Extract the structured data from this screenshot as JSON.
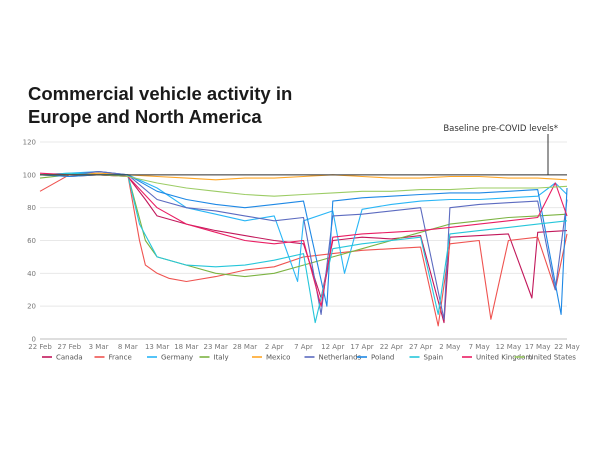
{
  "chart_data": {
    "type": "line",
    "title": "Commercial vehicle activity in Europe and North America",
    "xlabel": "",
    "ylabel": "",
    "x_start": "2020-02-22",
    "x_end": "2020-05-22",
    "x_ticks": [
      "22 Feb",
      "27 Feb",
      "3 Mar",
      "8 Mar",
      "13 Mar",
      "18 Mar",
      "23 Mar",
      "28 Mar",
      "2 Apr",
      "7 Apr",
      "12 Apr",
      "17 Apr",
      "22 Apr",
      "27 Apr",
      "2 May",
      "7 May",
      "12 May",
      "17 May",
      "22 May"
    ],
    "ylim": [
      0,
      120
    ],
    "y_ticks": [
      0,
      20,
      40,
      60,
      80,
      100,
      120
    ],
    "grid": "horizontal",
    "legend_position": "bottom",
    "baseline": {
      "value": 100,
      "label": "Baseline pre-COVID levels*"
    },
    "series": [
      {
        "name": "Canada",
        "color": "#c2185b",
        "values": [
          [
            0,
            100
          ],
          [
            5,
            99
          ],
          [
            10,
            100
          ],
          [
            15,
            99
          ],
          [
            18,
            85
          ],
          [
            20,
            75
          ],
          [
            25,
            70
          ],
          [
            30,
            66
          ],
          [
            35,
            63
          ],
          [
            40,
            60
          ],
          [
            45,
            58
          ],
          [
            48,
            25
          ],
          [
            50,
            60
          ],
          [
            55,
            62
          ],
          [
            60,
            61
          ],
          [
            65,
            63
          ],
          [
            69,
            10
          ],
          [
            70,
            62
          ],
          [
            75,
            63
          ],
          [
            80,
            64
          ],
          [
            84,
            25
          ],
          [
            85,
            65
          ],
          [
            90,
            66
          ]
        ]
      },
      {
        "name": "France",
        "color": "#ef5350",
        "values": [
          [
            0,
            90
          ],
          [
            5,
            100
          ],
          [
            10,
            102
          ],
          [
            15,
            100
          ],
          [
            17,
            60
          ],
          [
            18,
            45
          ],
          [
            20,
            40
          ],
          [
            22,
            37
          ],
          [
            25,
            35
          ],
          [
            30,
            38
          ],
          [
            35,
            42
          ],
          [
            40,
            44
          ],
          [
            45,
            50
          ],
          [
            50,
            52
          ],
          [
            55,
            54
          ],
          [
            60,
            55
          ],
          [
            65,
            56
          ],
          [
            68,
            8
          ],
          [
            70,
            58
          ],
          [
            75,
            60
          ],
          [
            77,
            12
          ],
          [
            80,
            60
          ],
          [
            85,
            62
          ],
          [
            88,
            30
          ],
          [
            90,
            64
          ]
        ]
      },
      {
        "name": "Germany",
        "color": "#29b6f6",
        "values": [
          [
            0,
            100
          ],
          [
            5,
            101
          ],
          [
            10,
            102
          ],
          [
            15,
            100
          ],
          [
            20,
            92
          ],
          [
            25,
            80
          ],
          [
            30,
            76
          ],
          [
            35,
            72
          ],
          [
            40,
            75
          ],
          [
            44,
            35
          ],
          [
            45,
            72
          ],
          [
            50,
            78
          ],
          [
            52,
            40
          ],
          [
            55,
            79
          ],
          [
            60,
            82
          ],
          [
            65,
            84
          ],
          [
            70,
            85
          ],
          [
            75,
            85
          ],
          [
            80,
            86
          ],
          [
            85,
            87
          ],
          [
            88,
            95
          ],
          [
            90,
            88
          ]
        ]
      },
      {
        "name": "Italy",
        "color": "#7cb342",
        "values": [
          [
            0,
            98
          ],
          [
            5,
            100
          ],
          [
            10,
            100
          ],
          [
            15,
            100
          ],
          [
            18,
            60
          ],
          [
            20,
            50
          ],
          [
            25,
            45
          ],
          [
            30,
            40
          ],
          [
            35,
            38
          ],
          [
            40,
            40
          ],
          [
            45,
            45
          ],
          [
            50,
            50
          ],
          [
            55,
            55
          ],
          [
            60,
            60
          ],
          [
            65,
            65
          ],
          [
            70,
            70
          ],
          [
            75,
            72
          ],
          [
            80,
            74
          ],
          [
            85,
            75
          ],
          [
            90,
            76
          ]
        ]
      },
      {
        "name": "Mexico",
        "color": "#ffa726",
        "values": [
          [
            0,
            100
          ],
          [
            5,
            100
          ],
          [
            10,
            101
          ],
          [
            15,
            100
          ],
          [
            20,
            99
          ],
          [
            25,
            98
          ],
          [
            30,
            97
          ],
          [
            35,
            98
          ],
          [
            40,
            98
          ],
          [
            45,
            99
          ],
          [
            50,
            100
          ],
          [
            55,
            99
          ],
          [
            60,
            98
          ],
          [
            65,
            98
          ],
          [
            70,
            99
          ],
          [
            75,
            99
          ],
          [
            80,
            98
          ],
          [
            85,
            98
          ],
          [
            90,
            97
          ]
        ]
      },
      {
        "name": "Netherlands",
        "color": "#5c6bc0",
        "values": [
          [
            0,
            100
          ],
          [
            5,
            100
          ],
          [
            10,
            102
          ],
          [
            15,
            100
          ],
          [
            20,
            85
          ],
          [
            25,
            80
          ],
          [
            30,
            78
          ],
          [
            35,
            75
          ],
          [
            40,
            72
          ],
          [
            45,
            74
          ],
          [
            48,
            15
          ],
          [
            50,
            75
          ],
          [
            55,
            76
          ],
          [
            60,
            78
          ],
          [
            65,
            80
          ],
          [
            69,
            12
          ],
          [
            70,
            80
          ],
          [
            75,
            82
          ],
          [
            80,
            83
          ],
          [
            85,
            84
          ],
          [
            88,
            30
          ],
          [
            90,
            85
          ]
        ]
      },
      {
        "name": "Poland",
        "color": "#1e88e5",
        "values": [
          [
            0,
            100
          ],
          [
            5,
            99
          ],
          [
            10,
            100
          ],
          [
            15,
            100
          ],
          [
            20,
            90
          ],
          [
            25,
            85
          ],
          [
            30,
            82
          ],
          [
            35,
            80
          ],
          [
            40,
            82
          ],
          [
            45,
            84
          ],
          [
            49,
            20
          ],
          [
            50,
            84
          ],
          [
            55,
            86
          ],
          [
            60,
            87
          ],
          [
            65,
            88
          ],
          [
            70,
            89
          ],
          [
            75,
            89
          ],
          [
            80,
            90
          ],
          [
            85,
            91
          ],
          [
            89,
            15
          ],
          [
            90,
            92
          ]
        ]
      },
      {
        "name": "Spain",
        "color": "#26c6da",
        "values": [
          [
            0,
            100
          ],
          [
            5,
            101
          ],
          [
            10,
            100
          ],
          [
            15,
            100
          ],
          [
            17,
            70
          ],
          [
            20,
            50
          ],
          [
            25,
            45
          ],
          [
            30,
            44
          ],
          [
            35,
            45
          ],
          [
            40,
            48
          ],
          [
            45,
            52
          ],
          [
            47,
            10
          ],
          [
            50,
            55
          ],
          [
            55,
            58
          ],
          [
            60,
            60
          ],
          [
            65,
            62
          ],
          [
            68,
            15
          ],
          [
            70,
            64
          ],
          [
            75,
            66
          ],
          [
            80,
            68
          ],
          [
            85,
            70
          ],
          [
            90,
            72
          ]
        ]
      },
      {
        "name": "United Kingdom",
        "color": "#e91e63",
        "values": [
          [
            0,
            101
          ],
          [
            5,
            100
          ],
          [
            10,
            100
          ],
          [
            15,
            99
          ],
          [
            20,
            80
          ],
          [
            25,
            70
          ],
          [
            30,
            65
          ],
          [
            35,
            60
          ],
          [
            40,
            58
          ],
          [
            45,
            60
          ],
          [
            48,
            20
          ],
          [
            50,
            62
          ],
          [
            55,
            64
          ],
          [
            60,
            65
          ],
          [
            65,
            66
          ],
          [
            70,
            68
          ],
          [
            75,
            70
          ],
          [
            80,
            72
          ],
          [
            85,
            74
          ],
          [
            88,
            95
          ],
          [
            90,
            75
          ]
        ]
      },
      {
        "name": "United States",
        "color": "#9ccc65",
        "values": [
          [
            0,
            100
          ],
          [
            5,
            100
          ],
          [
            10,
            100
          ],
          [
            15,
            99
          ],
          [
            20,
            95
          ],
          [
            25,
            92
          ],
          [
            30,
            90
          ],
          [
            35,
            88
          ],
          [
            40,
            87
          ],
          [
            45,
            88
          ],
          [
            50,
            89
          ],
          [
            55,
            90
          ],
          [
            60,
            90
          ],
          [
            65,
            91
          ],
          [
            70,
            91
          ],
          [
            75,
            92
          ],
          [
            80,
            92
          ],
          [
            85,
            92
          ],
          [
            90,
            93
          ]
        ]
      }
    ]
  }
}
